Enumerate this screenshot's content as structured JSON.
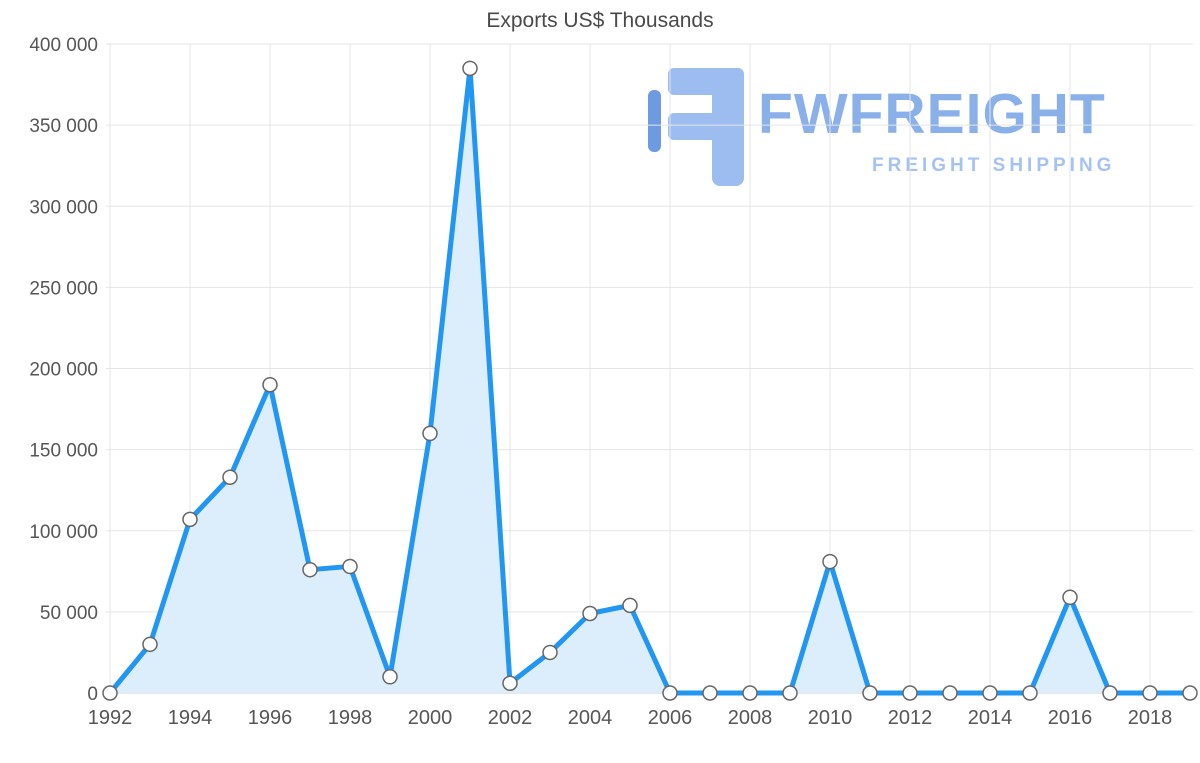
{
  "chart_data": {
    "type": "area",
    "title": "Exports US$ Thousands",
    "x": [
      1992,
      1993,
      1994,
      1995,
      1996,
      1997,
      1998,
      1999,
      2000,
      2001,
      2002,
      2003,
      2004,
      2005,
      2006,
      2007,
      2008,
      2009,
      2010,
      2011,
      2012,
      2013,
      2014,
      2015,
      2016,
      2017,
      2018,
      2019
    ],
    "values": [
      0,
      30000,
      107000,
      133000,
      190000,
      76000,
      78000,
      10000,
      160000,
      385000,
      6000,
      25000,
      49000,
      54000,
      0,
      0,
      0,
      0,
      81000,
      0,
      0,
      0,
      0,
      0,
      59000,
      0,
      0,
      0
    ],
    "ylim": [
      0,
      400000
    ],
    "ytick_step": 50000,
    "ytick_labels": [
      "0",
      "50 000",
      "100 000",
      "150 000",
      "200 000",
      "250 000",
      "300 000",
      "350 000",
      "400 000"
    ],
    "xticks": [
      1992,
      1994,
      1996,
      1998,
      2000,
      2002,
      2004,
      2006,
      2008,
      2010,
      2012,
      2014,
      2016,
      2018
    ],
    "grid": true,
    "legend": "none",
    "colors": {
      "line": "#2196f3",
      "fill": "#dcedfc",
      "marker_fill": "#ffffff",
      "marker_stroke": "#666666",
      "grid": "#e5e5e5",
      "baseline": "#d0d0d0",
      "axis_text": "#565656",
      "title_text": "#4a4a4a"
    }
  },
  "watermark": {
    "brand": "FWFREIGHT",
    "tagline": "FREIGHT SHIPPING",
    "logo": "fwfreight-logo",
    "colors": {
      "brand": "#8ab0ea",
      "tagline": "#a5c3f1",
      "logo_light": "#9dbcf0",
      "logo_dark": "#6d9ae0"
    }
  }
}
